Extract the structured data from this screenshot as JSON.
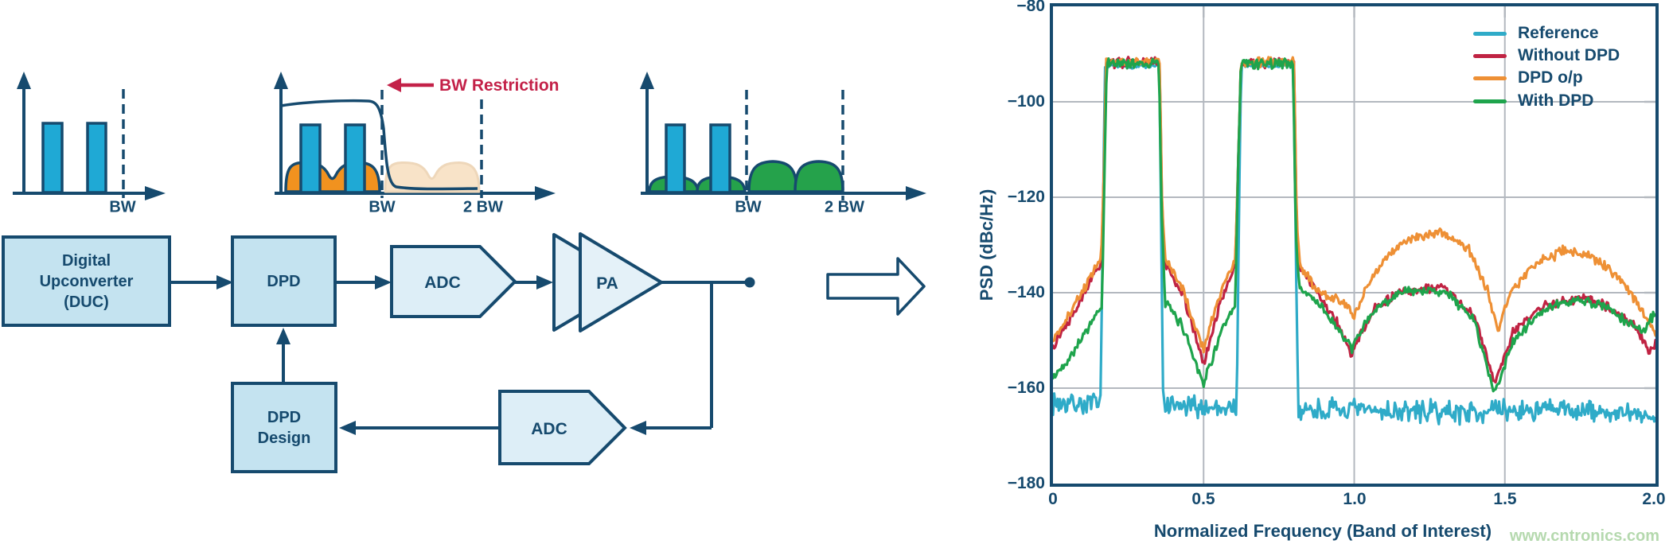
{
  "colors": {
    "navy": "#164a6e",
    "bar_blue": "#1fa9d5",
    "hump_orange": "#f1921f",
    "hump_orange_faded": "#f8e3c8",
    "hump_green": "#25a24b",
    "restriction_red": "#c32148",
    "box_fill": "#c4e3f0",
    "pentagon_fill": "#ddeef7",
    "pa_fill": "#e4f1f8",
    "grid_gray": "#b3b8bf",
    "watermark_green": "#b5d9ae"
  },
  "diagram": {
    "spectrum1": {
      "bw_label": "BW"
    },
    "spectrum2": {
      "bw_label": "BW",
      "two_bw_label": "2 BW",
      "restriction_label": "BW Restriction"
    },
    "spectrum3": {
      "bw_label": "BW",
      "two_bw_label": "2 BW"
    },
    "blocks": {
      "duc_line1": "Digital",
      "duc_line2": "Upconverter",
      "duc_line3": "(DUC)",
      "dpd": "DPD",
      "adc_forward": "ADC",
      "pa": "PA",
      "adc_feedback": "ADC",
      "dpd_design_line1": "DPD",
      "dpd_design_line2": "Design"
    }
  },
  "watermark": "www.cntronics.com",
  "chart_data": {
    "type": "line",
    "title": "",
    "xlabel": "Normalized Frequency (Band of Interest)",
    "ylabel": "PSD (dBc/Hz)",
    "xlim": [
      0,
      2
    ],
    "ylim": [
      -180,
      -80
    ],
    "xticks": [
      0,
      0.5,
      1.0,
      1.5,
      2.0
    ],
    "yticks": [
      -80,
      -100,
      -120,
      -140,
      -160,
      -180
    ],
    "xtick_labels": [
      "0",
      "0.5",
      "1.0",
      "1.5",
      "2.0"
    ],
    "ytick_labels": [
      "−80",
      "−100",
      "−120",
      "−140",
      "−160",
      "−180"
    ],
    "grid": true,
    "legend_position": "top-right",
    "description": "Two in-band signal blocks (0.17-0.36 and 0.62-0.80 normalized frequency) at ~-92 dBc/Hz; Reference noise floor ~-164 dBc/Hz; distortion shoulders/humps for Without DPD, DPD o/p and With DPD between bands and from 1.0 to 2.0.",
    "series": [
      {
        "name": "Reference",
        "color": "#2fabc8",
        "seed": 7,
        "noise": 2.5,
        "points": [
          [
            0,
            -163,
            2.8
          ],
          [
            0.158,
            -163.5,
            2.8
          ],
          [
            0.166,
            -125,
            0.5
          ],
          [
            0.172,
            -92.5,
            0.6
          ],
          [
            0.353,
            -92.5,
            0.6
          ],
          [
            0.359,
            -125,
            0.5
          ],
          [
            0.366,
            -164,
            2.8
          ],
          [
            0.61,
            -164,
            2.8
          ],
          [
            0.618,
            -120,
            0.5
          ],
          [
            0.625,
            -92.5,
            0.6
          ],
          [
            0.798,
            -92.5,
            0.6
          ],
          [
            0.806,
            -130,
            0.5
          ],
          [
            0.814,
            -164.5,
            2.8
          ],
          [
            1.3,
            -165,
            2.8
          ],
          [
            1.7,
            -164.5,
            2.8
          ],
          [
            2,
            -166,
            2.5
          ]
        ]
      },
      {
        "name": "Without DPD",
        "color": "#c02343",
        "seed": 13,
        "noise": 1.2,
        "points": [
          [
            0,
            -151,
            1.2
          ],
          [
            0.06,
            -145,
            1.2
          ],
          [
            0.12,
            -138,
            1.2
          ],
          [
            0.16,
            -134,
            1
          ],
          [
            0.169,
            -115,
            0.5
          ],
          [
            0.176,
            -91.8,
            1.3
          ],
          [
            0.354,
            -91.8,
            1.3
          ],
          [
            0.362,
            -122,
            0.6
          ],
          [
            0.372,
            -134,
            1.2
          ],
          [
            0.43,
            -140,
            1.2
          ],
          [
            0.5,
            -155,
            1.2
          ],
          [
            0.56,
            -141,
            1.2
          ],
          [
            0.605,
            -134.5,
            1
          ],
          [
            0.614,
            -115,
            0.5
          ],
          [
            0.624,
            -91.8,
            1.3
          ],
          [
            0.8,
            -91.8,
            1.3
          ],
          [
            0.809,
            -126,
            0.6
          ],
          [
            0.82,
            -135,
            1.2
          ],
          [
            0.88,
            -140,
            1.2
          ],
          [
            0.95,
            -147,
            1.2
          ],
          [
            0.99,
            -153,
            1.2
          ],
          [
            1.02,
            -149,
            1.2
          ],
          [
            1.07,
            -143,
            1.2
          ],
          [
            1.15,
            -140,
            1.2
          ],
          [
            1.3,
            -139,
            1.2
          ],
          [
            1.4,
            -145,
            1.2
          ],
          [
            1.465,
            -159,
            1.2
          ],
          [
            1.53,
            -148,
            1.2
          ],
          [
            1.62,
            -143,
            1.2
          ],
          [
            1.75,
            -141,
            1.2
          ],
          [
            1.85,
            -143,
            1.2
          ],
          [
            1.93,
            -147,
            1.2
          ],
          [
            1.98,
            -152,
            1.2
          ],
          [
            2,
            -151,
            1.2
          ]
        ]
      },
      {
        "name": "DPD o/p",
        "color": "#ee9035",
        "seed": 21,
        "noise": 1.2,
        "points": [
          [
            0,
            -150,
            1.2
          ],
          [
            0.06,
            -144,
            1.2
          ],
          [
            0.12,
            -137,
            1.2
          ],
          [
            0.16,
            -132.5,
            1
          ],
          [
            0.169,
            -115,
            0.5
          ],
          [
            0.176,
            -91.6,
            1.2
          ],
          [
            0.354,
            -91.6,
            1.2
          ],
          [
            0.362,
            -121,
            0.6
          ],
          [
            0.372,
            -133,
            1.2
          ],
          [
            0.43,
            -139,
            1.2
          ],
          [
            0.5,
            -152,
            1.2
          ],
          [
            0.56,
            -139,
            1.2
          ],
          [
            0.605,
            -133,
            1
          ],
          [
            0.614,
            -115,
            0.5
          ],
          [
            0.624,
            -91.6,
            1.2
          ],
          [
            0.8,
            -91.6,
            1.2
          ],
          [
            0.809,
            -125,
            0.6
          ],
          [
            0.82,
            -134,
            1.2
          ],
          [
            0.88,
            -140,
            1.3
          ],
          [
            0.97,
            -142,
            1.3
          ],
          [
            1,
            -145,
            1.2
          ],
          [
            1.04,
            -139,
            1.3
          ],
          [
            1.1,
            -133,
            1.3
          ],
          [
            1.2,
            -128,
            1.4
          ],
          [
            1.3,
            -127.5,
            1.4
          ],
          [
            1.38,
            -131,
            1.3
          ],
          [
            1.44,
            -139,
            1.2
          ],
          [
            1.475,
            -148,
            1.2
          ],
          [
            1.52,
            -140,
            1.3
          ],
          [
            1.6,
            -134,
            1.4
          ],
          [
            1.7,
            -131,
            1.4
          ],
          [
            1.8,
            -133,
            1.4
          ],
          [
            1.88,
            -137,
            1.3
          ],
          [
            1.95,
            -143,
            1.2
          ],
          [
            2,
            -149,
            1.2
          ]
        ]
      },
      {
        "name": "With DPD",
        "color": "#1ea44c",
        "seed": 42,
        "noise": 1.2,
        "points": [
          [
            0,
            -158,
            1.2
          ],
          [
            0.05,
            -154,
            1.2
          ],
          [
            0.1,
            -149,
            1.2
          ],
          [
            0.15,
            -144,
            1
          ],
          [
            0.163,
            -143,
            0.8
          ],
          [
            0.171,
            -115,
            0.5
          ],
          [
            0.178,
            -91.9,
            1.4
          ],
          [
            0.352,
            -91.9,
            1.4
          ],
          [
            0.36,
            -122,
            0.6
          ],
          [
            0.372,
            -142,
            1.2
          ],
          [
            0.43,
            -147,
            1.2
          ],
          [
            0.5,
            -159,
            1.3
          ],
          [
            0.56,
            -148,
            1.2
          ],
          [
            0.605,
            -143,
            1
          ],
          [
            0.614,
            -115,
            0.5
          ],
          [
            0.624,
            -91.9,
            1.4
          ],
          [
            0.797,
            -91.9,
            1.4
          ],
          [
            0.806,
            -128,
            0.6
          ],
          [
            0.818,
            -139,
            1.2
          ],
          [
            0.88,
            -142,
            1.2
          ],
          [
            0.95,
            -148,
            1.2
          ],
          [
            0.99,
            -152,
            1.2
          ],
          [
            1.03,
            -147,
            1.2
          ],
          [
            1.08,
            -143,
            1.2
          ],
          [
            1.15,
            -140,
            1.2
          ],
          [
            1.3,
            -139.5,
            1.3
          ],
          [
            1.4,
            -146,
            1.2
          ],
          [
            1.465,
            -161,
            1.2
          ],
          [
            1.53,
            -150,
            1.2
          ],
          [
            1.62,
            -144,
            1.2
          ],
          [
            1.72,
            -141.5,
            1.3
          ],
          [
            1.82,
            -142.5,
            1.3
          ],
          [
            1.9,
            -146,
            1.2
          ],
          [
            1.96,
            -148,
            1.2
          ],
          [
            2,
            -144,
            1.2
          ]
        ]
      }
    ]
  }
}
